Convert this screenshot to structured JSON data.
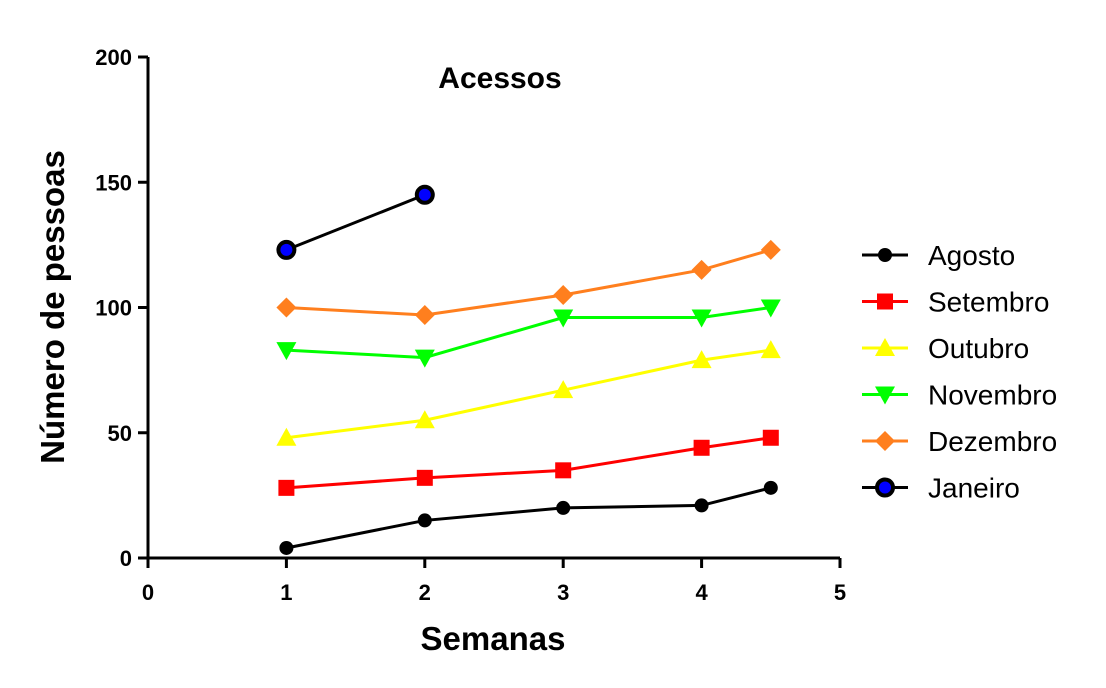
{
  "chart_data": {
    "type": "line",
    "title": "Acessos",
    "xlabel": "Semanas",
    "ylabel": "Número de pessoas",
    "xlim": [
      0,
      5
    ],
    "ylim": [
      0,
      200
    ],
    "x_ticks": [
      0,
      1,
      2,
      3,
      4,
      5
    ],
    "y_ticks": [
      0,
      50,
      100,
      150,
      200
    ],
    "grid": false,
    "legend_position": "right",
    "series": [
      {
        "name": "Agosto",
        "color": "#000000",
        "marker": "circle",
        "x": [
          1,
          2,
          3,
          4,
          4.5
        ],
        "y": [
          4,
          15,
          20,
          21,
          28
        ]
      },
      {
        "name": "Setembro",
        "color": "#ff0000",
        "marker": "square",
        "x": [
          1,
          2,
          3,
          4,
          4.5
        ],
        "y": [
          28,
          32,
          35,
          44,
          48
        ]
      },
      {
        "name": "Outubro",
        "color": "#ffff00",
        "marker": "triangle-up",
        "x": [
          1,
          2,
          3,
          4,
          4.5
        ],
        "y": [
          48,
          55,
          67,
          79,
          83
        ]
      },
      {
        "name": "Novembro",
        "color": "#00ff00",
        "marker": "triangle-down",
        "x": [
          1,
          2,
          3,
          4,
          4.5
        ],
        "y": [
          83,
          80,
          96,
          96,
          100
        ]
      },
      {
        "name": "Dezembro",
        "color": "#ff7f1e",
        "marker": "diamond",
        "x": [
          1,
          2,
          3,
          4,
          4.5
        ],
        "y": [
          100,
          97,
          105,
          115,
          123
        ]
      },
      {
        "name": "Janeiro",
        "color": "#000000",
        "marker": "circle-blue",
        "marker_fill": "#0000ff",
        "x": [
          1,
          2
        ],
        "y": [
          123,
          145
        ]
      }
    ]
  }
}
